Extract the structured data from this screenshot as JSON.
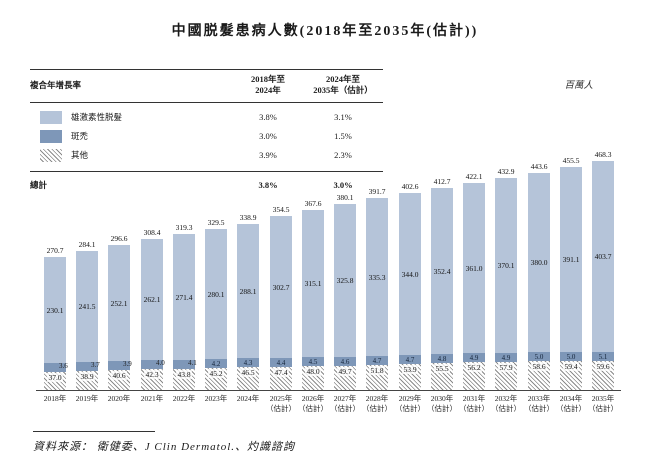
{
  "title": "中國脱髮患病人數(2018年至2035年(估計))",
  "unit_label": "百萬人",
  "legend_table": {
    "header": {
      "label": "複合年增長率",
      "col1": "2018年至\n2024年",
      "col2": "2024年至\n2035年（估計）"
    },
    "rows": [
      {
        "swatch": "androgenetic-alopecia",
        "label": "雄激素性脱髮",
        "v1": "3.8%",
        "v2": "3.1%"
      },
      {
        "swatch": "alopecia-areata",
        "label": "斑禿",
        "v1": "3.0%",
        "v2": "1.5%"
      },
      {
        "swatch": "others",
        "label": "其他",
        "v1": "3.9%",
        "v2": "2.3%"
      }
    ],
    "total": {
      "label": "總計",
      "v1": "3.8%",
      "v2": "3.0%"
    }
  },
  "chart_data": {
    "type": "bar",
    "stacked": true,
    "title": "中國脱髮患病人數(2018年至2035年(估計))",
    "unit": "百萬人",
    "ylim": [
      0,
      480
    ],
    "grid": false,
    "legend_position": "top-left-table",
    "categories": [
      "2018年",
      "2019年",
      "2020年",
      "2021年",
      "2022年",
      "2023年",
      "2024年",
      "2025年",
      "2026年",
      "2027年",
      "2028年",
      "2029年",
      "2030年",
      "2031年",
      "2032年",
      "2033年",
      "2034年",
      "2035年"
    ],
    "estimate_suffix": "（估計）",
    "estimate_from_index": 7,
    "series": [
      {
        "name": "雄激素性脱髮",
        "color": "#b5c4d9",
        "values": [
          230.1,
          241.5,
          252.1,
          262.1,
          271.4,
          280.1,
          288.1,
          302.7,
          315.1,
          325.8,
          335.3,
          344.0,
          352.4,
          361.0,
          370.1,
          380.0,
          391.1,
          403.7
        ]
      },
      {
        "name": "斑禿",
        "color": "#7e97b8",
        "values": [
          3.6,
          3.7,
          3.9,
          4.0,
          4.1,
          4.2,
          4.3,
          4.4,
          4.5,
          4.6,
          4.7,
          4.7,
          4.8,
          4.9,
          4.9,
          5.0,
          5.0,
          5.1
        ]
      },
      {
        "name": "其他",
        "pattern": "diagonal-hatch",
        "values": [
          37.0,
          38.9,
          40.6,
          42.3,
          43.8,
          45.2,
          46.5,
          47.4,
          48.0,
          49.7,
          51.8,
          53.9,
          55.5,
          56.2,
          57.9,
          58.6,
          59.4,
          59.6
        ]
      }
    ],
    "totals": [
      270.7,
      284.1,
      296.6,
      308.4,
      319.3,
      329.5,
      338.9,
      354.5,
      367.6,
      380.1,
      391.7,
      402.6,
      412.7,
      422.1,
      432.9,
      443.6,
      455.5,
      468.3
    ]
  },
  "source": "資料來源： 衛健委、J Clin Dermatol.、灼識諮詢"
}
